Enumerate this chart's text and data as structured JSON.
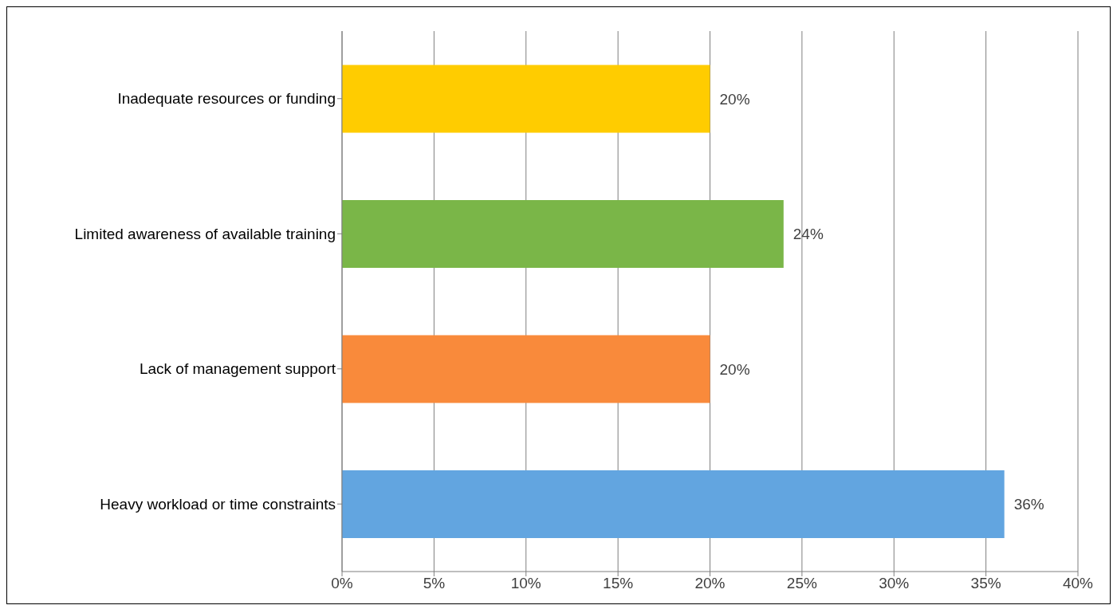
{
  "chart_data": {
    "type": "bar",
    "orientation": "horizontal",
    "categories": [
      "Inadequate resources or funding",
      "Limited awareness of available training",
      "Lack of management support",
      "Heavy workload or time constraints"
    ],
    "values": [
      20,
      24,
      20,
      36
    ],
    "colors": [
      "#ffcc00",
      "#7ab648",
      "#f98a3b",
      "#62a5e0"
    ],
    "value_labels": [
      "20%",
      "24%",
      "20%",
      "36%"
    ],
    "xlim": [
      0,
      40
    ],
    "xticks": [
      {
        "value": 0,
        "label": "0%"
      },
      {
        "value": 5,
        "label": "5%"
      },
      {
        "value": 10,
        "label": "10%"
      },
      {
        "value": 15,
        "label": "15%"
      },
      {
        "value": 20,
        "label": "20%"
      },
      {
        "value": 25,
        "label": "25%"
      },
      {
        "value": 30,
        "label": "30%"
      },
      {
        "value": 35,
        "label": "35%"
      },
      {
        "value": 40,
        "label": "40%"
      }
    ],
    "grid": "x"
  }
}
